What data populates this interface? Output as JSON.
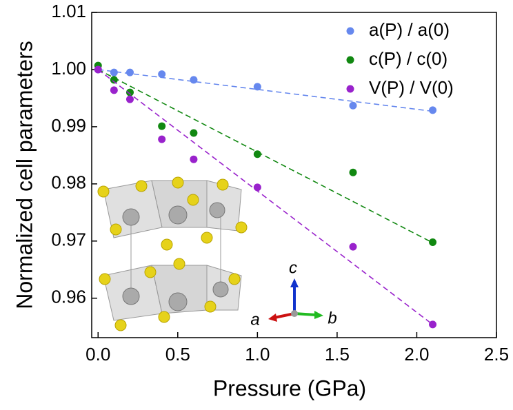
{
  "chart_data": {
    "type": "scatter",
    "x_label": "Pressure (GPa)",
    "y_label": "Normalized cell parameters",
    "xlim": [
      -0.04,
      2.5
    ],
    "ylim": [
      0.9531,
      1.01
    ],
    "xticks": [
      {
        "value": 0,
        "label": "0.0"
      },
      0.5,
      {
        "value": 1,
        "label": "1.0"
      },
      1.5,
      {
        "value": 2,
        "label": "2.0"
      },
      2.5
    ],
    "yticks": [
      0.96,
      0.97,
      0.98,
      0.99,
      {
        "value": 1,
        "label": "1.00"
      },
      1.01
    ],
    "legend": "upper right",
    "x": [
      0,
      0.1,
      0.2,
      0.4,
      0.6,
      1.0,
      1.6,
      2.1
    ],
    "series": [
      {
        "name": "a(P) / a(0)",
        "color": "#6688ee",
        "values": [
          1.0,
          0.9995,
          0.9995,
          0.9992,
          0.9982,
          0.997,
          0.9937,
          0.9929
        ],
        "fit_x": [
          0,
          2.1
        ],
        "fit_values": [
          1.0,
          0.9927
        ]
      },
      {
        "name": "c(P) / c(0)",
        "color": "#118811",
        "values": [
          1.0007,
          0.9982,
          0.996,
          0.9901,
          0.9889,
          0.9852,
          0.982,
          0.9698
        ],
        "fit_x": [
          0,
          2.1
        ],
        "fit_values": [
          1.0,
          0.9697
        ]
      },
      {
        "name": "V(P) / V(0)",
        "color": "#9922cc",
        "values": [
          1.0,
          0.9964,
          0.9948,
          0.9878,
          0.9843,
          0.9794,
          0.969,
          0.9554
        ],
        "fit_x": [
          0,
          2.1
        ],
        "fit_values": [
          1.0,
          0.9554
        ]
      }
    ],
    "annotations": [
      "c",
      "a",
      "b"
    ]
  }
}
